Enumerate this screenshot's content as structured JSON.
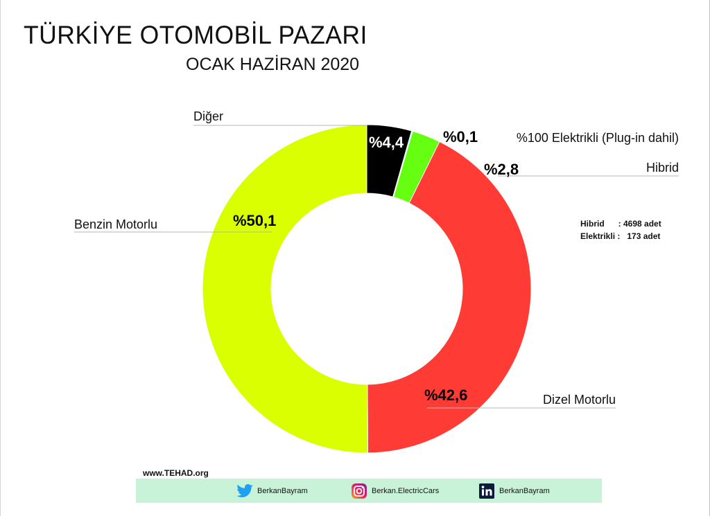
{
  "title": "TÜRKİYE OTOMOBİL PAZARI",
  "subtitle": "OCAK HAZİRAN 2020",
  "chart_data": {
    "type": "pie",
    "style": "donut",
    "start": "top",
    "direction": "clockwise",
    "slices": [
      {
        "name": "Diğer",
        "value": 4.4,
        "label": "%4,4",
        "color": "#000000",
        "label_color": "#ffffff"
      },
      {
        "name": "%100 Elektrikli (Plug-in dahil)",
        "value": 0.1,
        "label": "%0,1",
        "color": "#3ef0ff",
        "label_color": "#000000"
      },
      {
        "name": "Hibrid",
        "value": 2.8,
        "label": "%2,8",
        "color": "#66ff11",
        "label_color": "#000000"
      },
      {
        "name": "Dizel Motorlu",
        "value": 42.6,
        "label": "%42,6",
        "color": "#ff3b35",
        "label_color": "#000000"
      },
      {
        "name": "Benzin Motorlu",
        "value": 50.1,
        "label": "%50,1",
        "color": "#d9ff00",
        "label_color": "#000000"
      }
    ]
  },
  "notes": [
    {
      "label": "Hibrid      : 4698 adet"
    },
    {
      "label": "Elektrikli :   173 adet"
    }
  ],
  "footer": {
    "website": "www.TEHAD.org",
    "bar_color": "#c9f3d8",
    "social": [
      {
        "icon": "twitter-icon",
        "text": "BerkanBayram"
      },
      {
        "icon": "instagram-icon",
        "text": "Berkan.ElectricCars"
      },
      {
        "icon": "linkedin-icon",
        "text": "BerkanBayram"
      }
    ]
  }
}
